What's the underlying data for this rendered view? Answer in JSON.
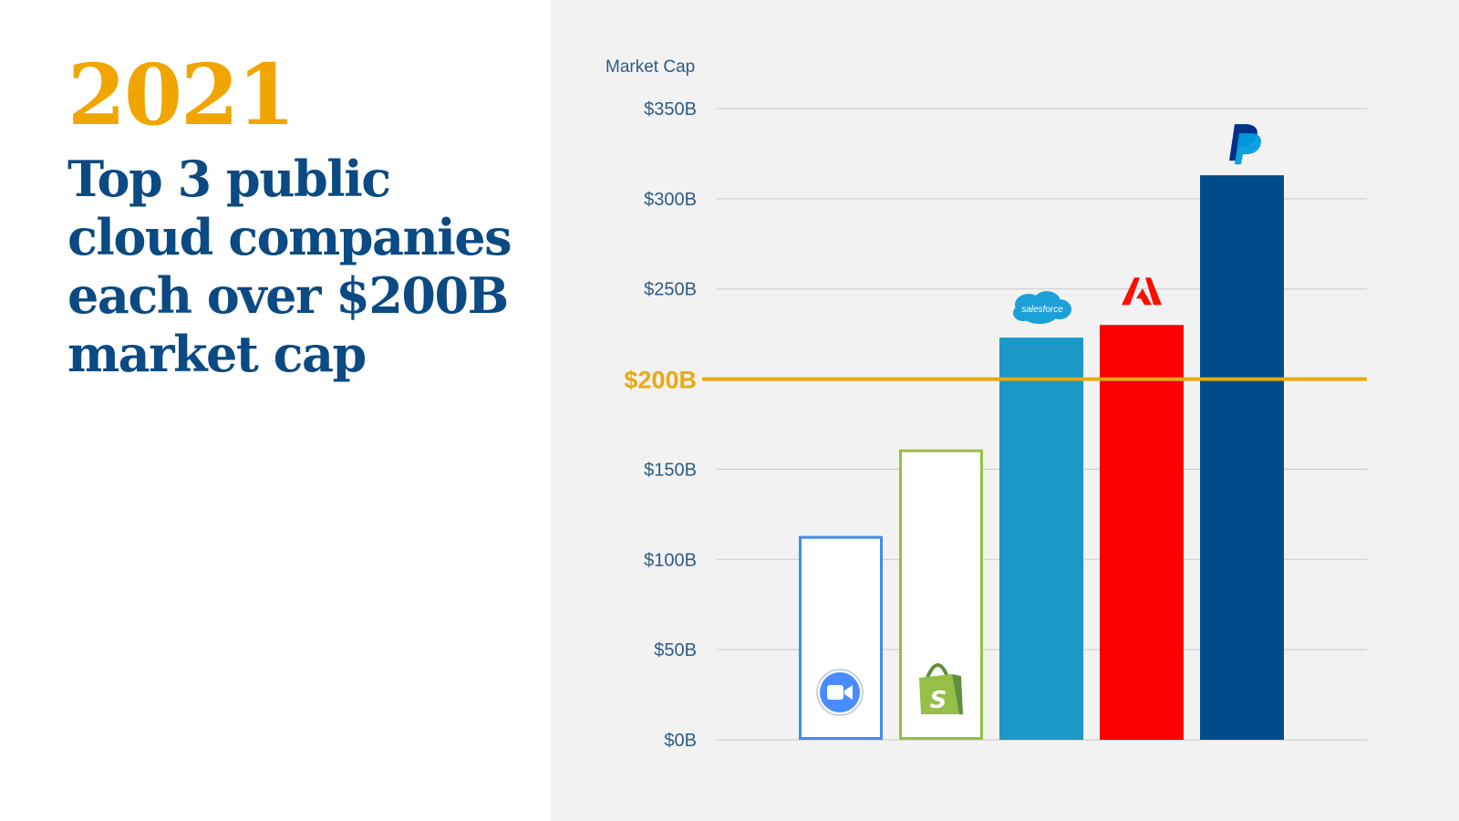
{
  "title": {
    "year": "2021",
    "headline": "Top 3 public cloud companies each over $200B market cap"
  },
  "chart_data": {
    "type": "bar",
    "ylabel": "Market Cap",
    "ylim": [
      0,
      350
    ],
    "yticks": [
      {
        "value": 0,
        "label": "$0B"
      },
      {
        "value": 50,
        "label": "$50B"
      },
      {
        "value": 100,
        "label": "$100B"
      },
      {
        "value": 150,
        "label": "$150B"
      },
      {
        "value": 250,
        "label": "$250B"
      },
      {
        "value": 300,
        "label": "$300B"
      },
      {
        "value": 350,
        "label": "$350B"
      }
    ],
    "reference_line": {
      "value": 200,
      "label": "$200B",
      "color": "#e8a912"
    },
    "grid": true,
    "bars": [
      {
        "company": "Zoom",
        "value": 113,
        "style": "outline",
        "color": "#3d8cf0",
        "logo": "zoom-logo"
      },
      {
        "company": "Shopify",
        "value": 161,
        "style": "outline",
        "color": "#95bf47",
        "logo": "shopify-logo"
      },
      {
        "company": "Salesforce",
        "value": 223,
        "style": "fill",
        "color": "#1a98c6",
        "logo": "salesforce-logo",
        "logo_text": "salesforce"
      },
      {
        "company": "Adobe",
        "value": 230,
        "style": "fill",
        "color": "#fa0000",
        "logo": "adobe-logo"
      },
      {
        "company": "PayPal",
        "value": 313,
        "style": "fill",
        "color": "#004c8a",
        "logo": "paypal-logo"
      }
    ]
  }
}
